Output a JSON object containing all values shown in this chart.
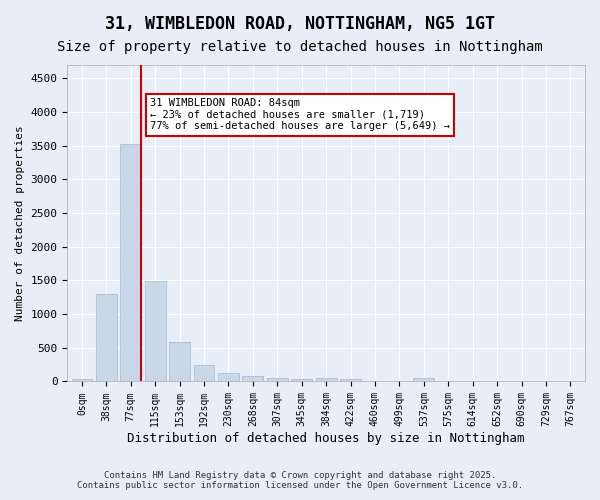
{
  "title": "31, WIMBLEDON ROAD, NOTTINGHAM, NG5 1GT",
  "subtitle": "Size of property relative to detached houses in Nottingham",
  "xlabel": "Distribution of detached houses by size in Nottingham",
  "ylabel": "Number of detached properties",
  "bar_color": "#c8d8e8",
  "bar_edge_color": "#a0b8d0",
  "categories": [
    "0sqm",
    "38sqm",
    "77sqm",
    "115sqm",
    "153sqm",
    "192sqm",
    "230sqm",
    "268sqm",
    "307sqm",
    "345sqm",
    "384sqm",
    "422sqm",
    "460sqm",
    "499sqm",
    "537sqm",
    "575sqm",
    "614sqm",
    "652sqm",
    "690sqm",
    "729sqm",
    "767sqm"
  ],
  "values": [
    30,
    1300,
    3530,
    1490,
    590,
    240,
    120,
    80,
    50,
    40,
    50,
    30,
    5,
    5,
    55,
    5,
    5,
    5,
    5,
    5,
    5
  ],
  "ylim": [
    0,
    4700
  ],
  "yticks": [
    0,
    500,
    1000,
    1500,
    2000,
    2500,
    3000,
    3500,
    4000,
    4500
  ],
  "vline_x": 2,
  "vline_color": "#cc0000",
  "annotation_text": "31 WIMBLEDON ROAD: 84sqm\n← 23% of detached houses are smaller (1,719)\n77% of semi-detached houses are larger (5,649) →",
  "annotation_box_color": "#ffffff",
  "annotation_box_edge": "#cc0000",
  "background_color": "#e8eef8",
  "plot_bg_color": "#e8eef8",
  "grid_color": "#ffffff",
  "title_fontsize": 12,
  "subtitle_fontsize": 10,
  "footer_text": "Contains HM Land Registry data © Crown copyright and database right 2025.\nContains public sector information licensed under the Open Government Licence v3.0."
}
